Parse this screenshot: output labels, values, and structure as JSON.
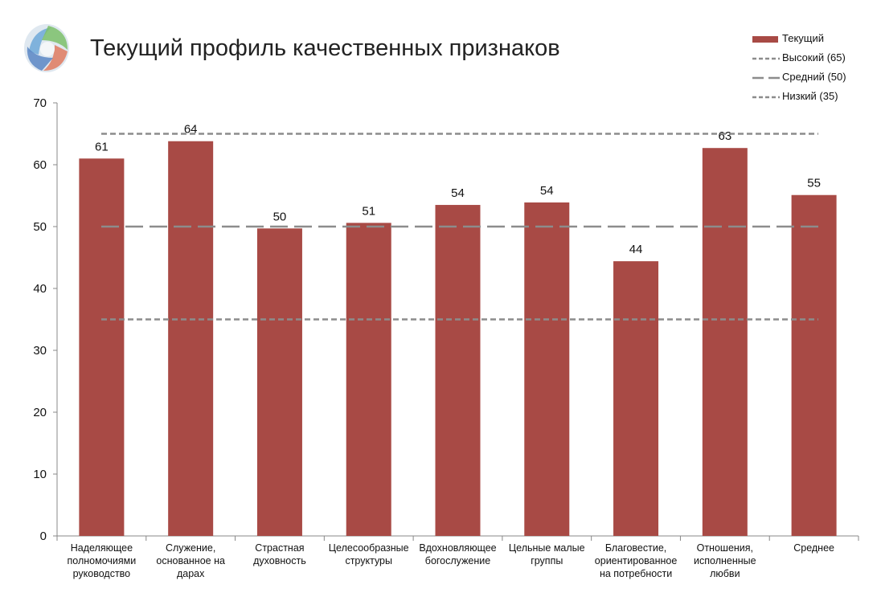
{
  "title": "Текущий профиль качественных признаков",
  "legend": {
    "current": "Текущий",
    "high": "Высокий (65)",
    "medium": "Средний (50)",
    "low": "Низкий (35)"
  },
  "colors": {
    "bar": "#a84a45",
    "reference_line": "#8c8c8c",
    "axis": "#888888"
  },
  "chart_data": {
    "type": "bar",
    "categories": [
      [
        "Наделяющее",
        "полномочиями",
        "руководство"
      ],
      [
        "Служение,",
        "основанное на",
        "дарах"
      ],
      [
        "Страстная",
        "духовность"
      ],
      [
        "Целесообразные",
        "структуры"
      ],
      [
        "Вдохновляющее",
        "богослужение"
      ],
      [
        "Цельные малые",
        "группы"
      ],
      [
        "Благовестие,",
        "ориентированное",
        "на потребности"
      ],
      [
        "Отношения,",
        "исполненные",
        "любви"
      ],
      [
        "Среднее"
      ]
    ],
    "series": [
      {
        "name": "Текущий",
        "values": [
          61,
          63.8,
          49.7,
          50.6,
          53.5,
          53.9,
          44.4,
          62.7,
          55.1
        ],
        "labels": [
          "61",
          "64",
          "50",
          "51",
          "54",
          "54",
          "44",
          "63",
          "55"
        ]
      }
    ],
    "reference_lines": [
      {
        "name": "Высокий (65)",
        "value": 65,
        "style": "short-dash"
      },
      {
        "name": "Средний (50)",
        "value": 50,
        "style": "long-dash"
      },
      {
        "name": "Низкий (35)",
        "value": 35,
        "style": "short-dash"
      }
    ],
    "yticks": [
      "0",
      "10",
      "20",
      "30",
      "40",
      "50",
      "60",
      "70"
    ],
    "ylim": [
      0,
      70
    ],
    "grid": false,
    "legend_position": "top-right"
  }
}
